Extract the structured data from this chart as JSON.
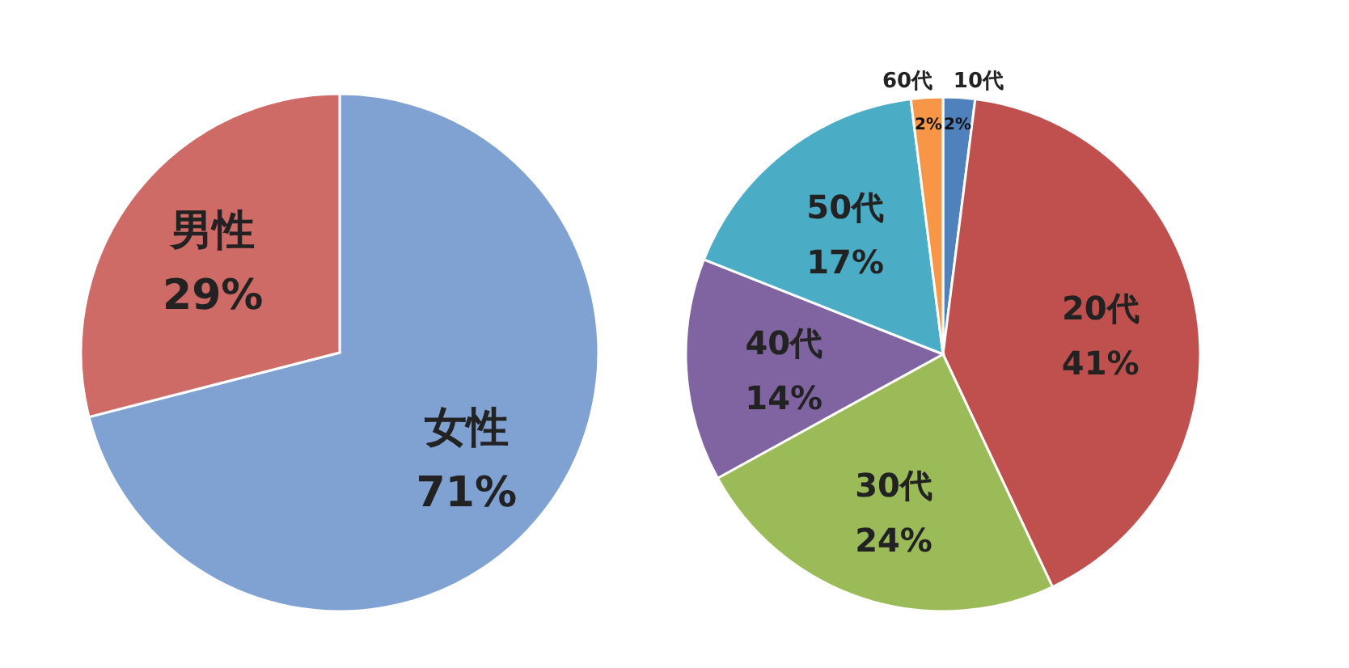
{
  "chart_data": [
    {
      "type": "pie",
      "categories": [
        "女性",
        "男性"
      ],
      "values": [
        71,
        29
      ],
      "colors": [
        "#7fa2d3",
        "#cf6b67"
      ],
      "value_labels": [
        "71%",
        "29%"
      ]
    },
    {
      "type": "pie",
      "categories": [
        "10代",
        "20代",
        "30代",
        "40代",
        "50代",
        "60代"
      ],
      "values": [
        2,
        41,
        24,
        14,
        17,
        2
      ],
      "colors": [
        "#4f81bd",
        "#c0504d",
        "#9bbb59",
        "#8064a2",
        "#4bacc6",
        "#f79646"
      ],
      "value_labels": [
        "2%",
        "41%",
        "24%",
        "14%",
        "17%",
        "2%"
      ]
    }
  ]
}
